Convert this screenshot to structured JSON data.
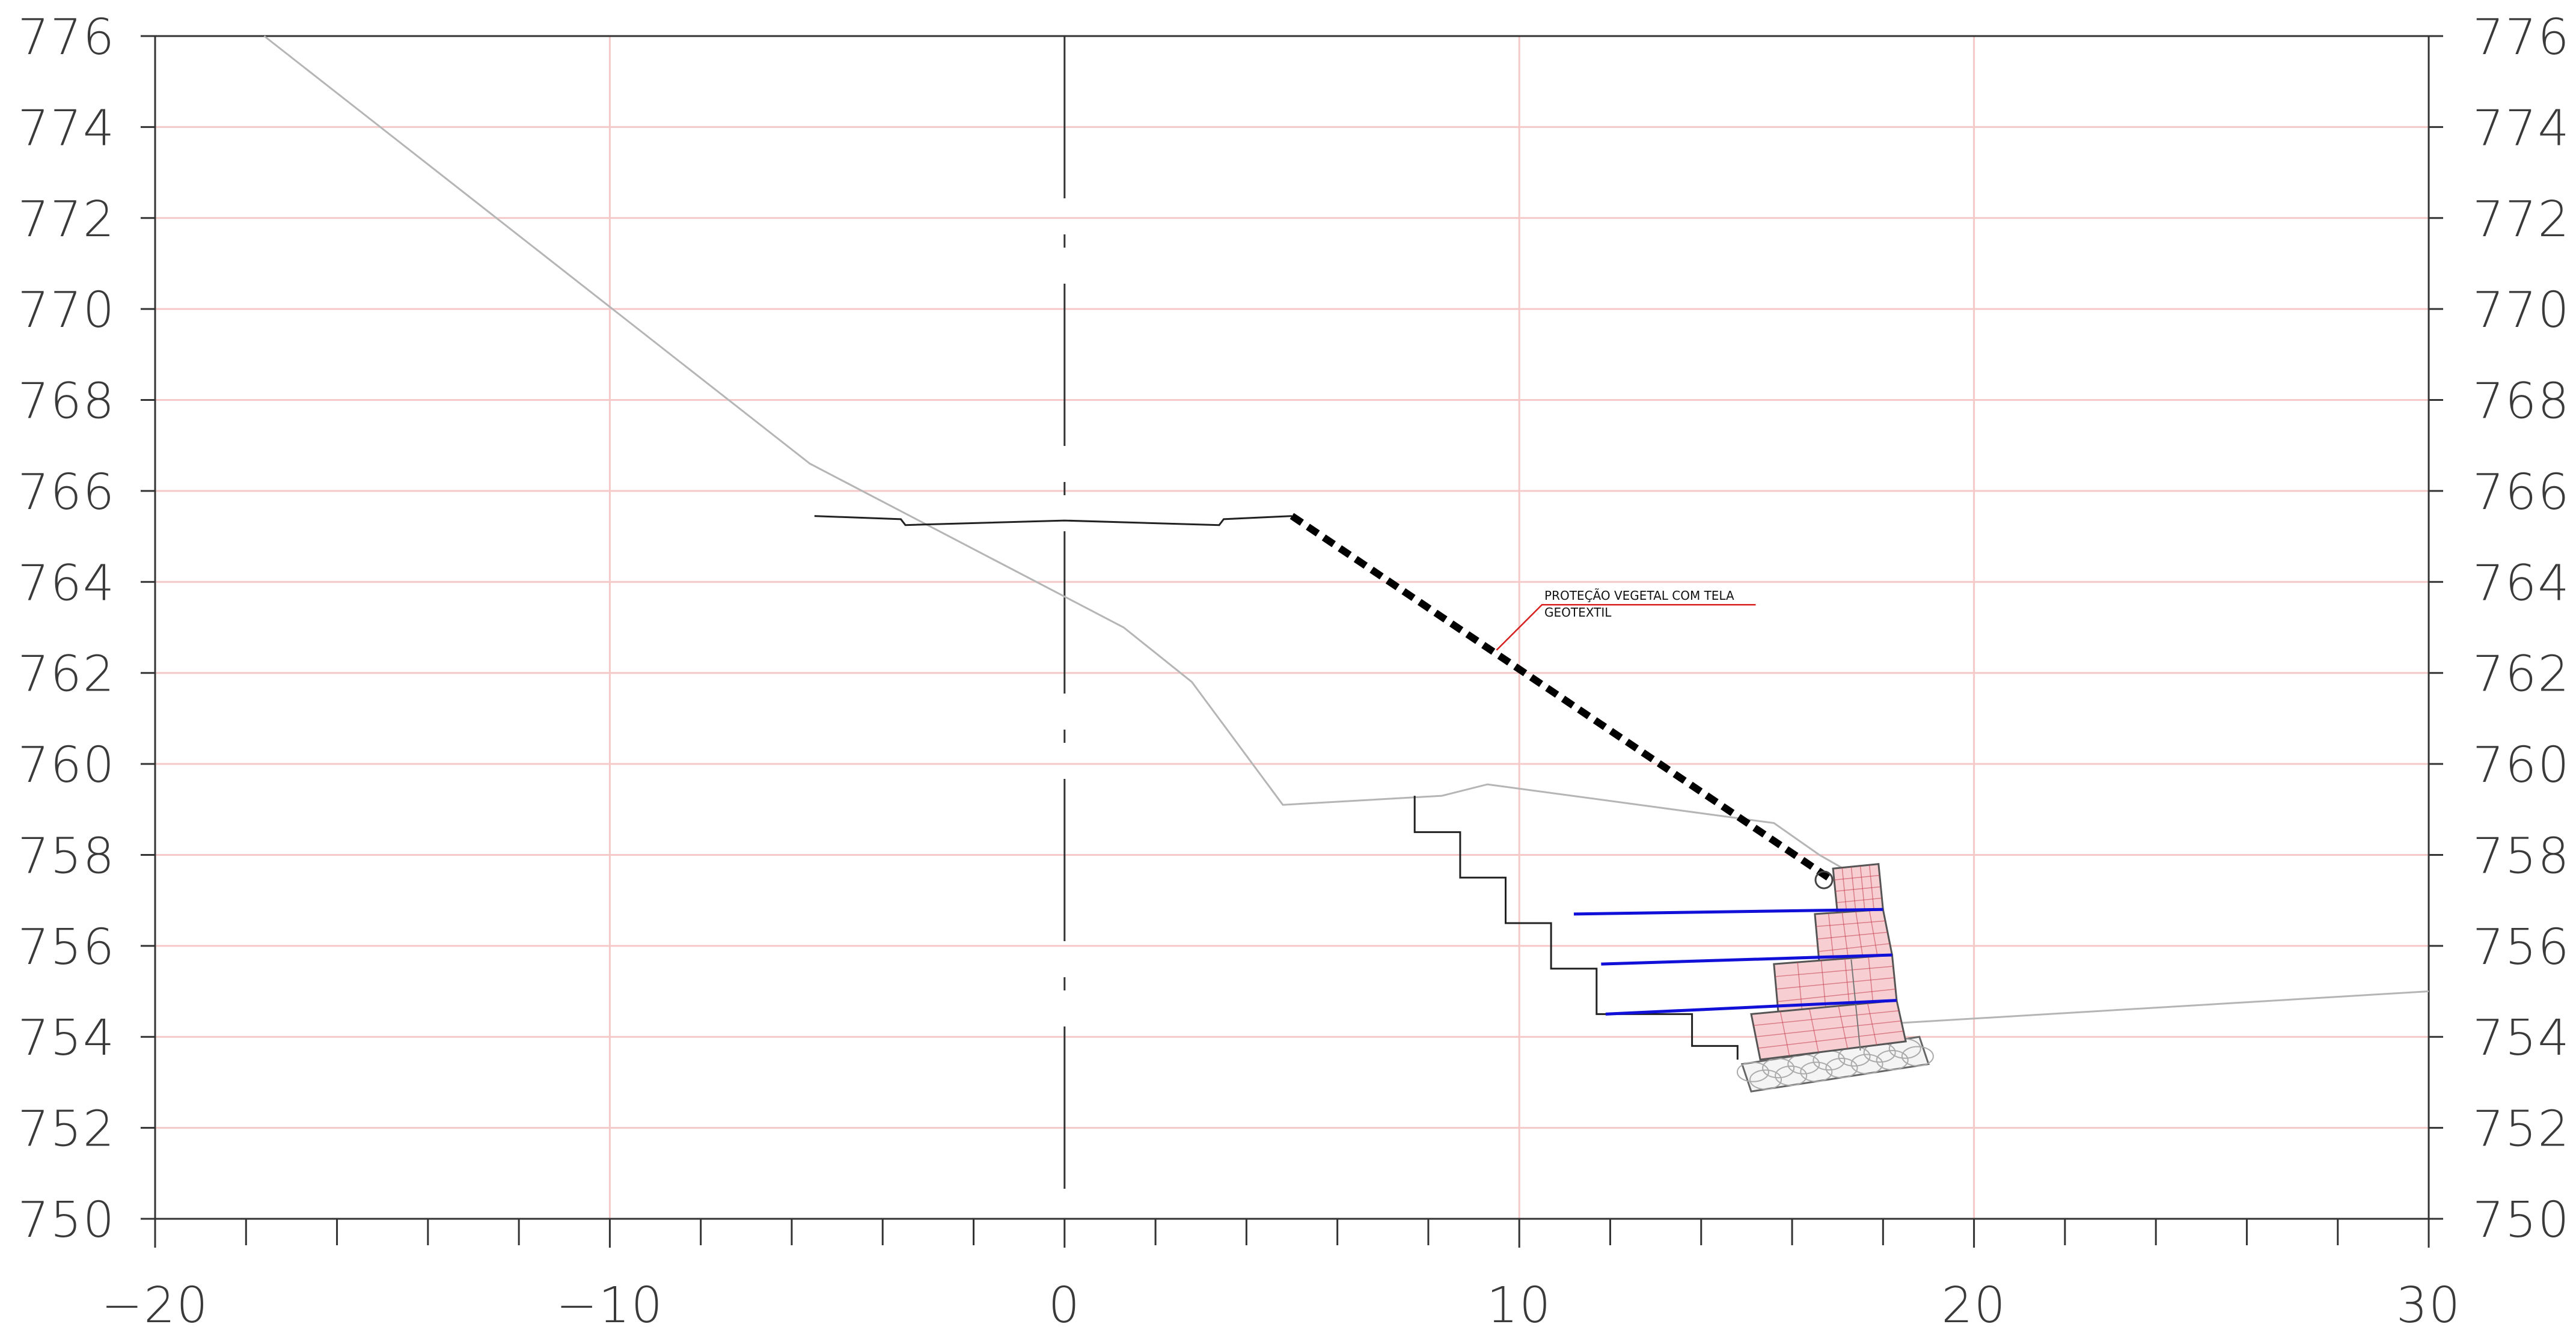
{
  "chart_data": {
    "type": "cross-section",
    "title": "",
    "xlabel": "",
    "ylabel": "",
    "xlim": [
      -20,
      30
    ],
    "ylim": [
      750,
      776
    ],
    "x_ticks": [
      -20,
      -10,
      0,
      10,
      20,
      30
    ],
    "x_tick_labels": [
      "−20",
      "−10",
      "0",
      "10",
      "20",
      "30"
    ],
    "y_ticks": [
      750,
      752,
      754,
      756,
      758,
      760,
      762,
      764,
      766,
      768,
      770,
      772,
      774,
      776
    ],
    "y_tick_labels": [
      "750",
      "752",
      "754",
      "756",
      "758",
      "760",
      "762",
      "764",
      "766",
      "768",
      "770",
      "772",
      "774",
      "776"
    ],
    "grid": "red horizontal every 2 m, vertical every 10 m",
    "centerline_x": 0,
    "existing_terrain": [
      [
        -17.6,
        776
      ],
      [
        -5.6,
        766.6
      ],
      [
        1.3,
        763
      ],
      [
        2.8,
        761.8
      ],
      [
        4.8,
        759.1
      ],
      [
        8.3,
        759.3
      ],
      [
        9.3,
        759.55
      ],
      [
        15.6,
        758.7
      ],
      [
        16.6,
        758
      ],
      [
        17.3,
        757.6
      ],
      [
        18.3,
        754.3
      ],
      [
        30,
        755
      ]
    ],
    "platform_profile": [
      [
        -5.5,
        765.45
      ],
      [
        -3.6,
        765.38
      ],
      [
        -3.5,
        765.25
      ],
      [
        0,
        765.35
      ],
      [
        3.4,
        765.25
      ],
      [
        3.5,
        765.38
      ],
      [
        5,
        765.45
      ]
    ],
    "slope_protection": [
      [
        5,
        765.45
      ],
      [
        16.8,
        757.5
      ]
    ],
    "excavation_steps": [
      [
        7.7,
        759.3
      ],
      [
        7.7,
        758.5
      ],
      [
        8.7,
        758.5
      ],
      [
        8.7,
        757.5
      ],
      [
        9.7,
        757.5
      ],
      [
        9.7,
        756.5
      ],
      [
        10.7,
        756.5
      ],
      [
        10.7,
        755.5
      ],
      [
        11.7,
        755.5
      ],
      [
        11.7,
        754.5
      ],
      [
        13.8,
        754.5
      ],
      [
        13.8,
        753.8
      ],
      [
        14.8,
        753.8
      ],
      [
        14.8,
        753.5
      ]
    ],
    "reinforcement_layers": [
      {
        "from": [
          11.2,
          756.7
        ],
        "to": [
          18,
          756.8
        ]
      },
      {
        "from": [
          11.8,
          755.6
        ],
        "to": [
          18.2,
          755.8
        ]
      },
      {
        "from": [
          11.9,
          754.5
        ],
        "to": [
          18.3,
          754.8
        ]
      }
    ],
    "gabion_blocks": [
      [
        [
          17.0,
          756.7
        ],
        [
          18.0,
          756.8
        ],
        [
          17.9,
          757.8
        ],
        [
          16.9,
          757.7
        ]
      ],
      [
        [
          16.6,
          755.6
        ],
        [
          18.2,
          755.8
        ],
        [
          18.0,
          756.8
        ],
        [
          16.5,
          756.7
        ]
      ],
      [
        [
          15.7,
          754.5
        ],
        [
          18.3,
          754.8
        ],
        [
          18.2,
          755.8
        ],
        [
          15.6,
          755.6
        ]
      ],
      [
        [
          15.3,
          753.5
        ],
        [
          18.5,
          753.9
        ],
        [
          18.3,
          754.8
        ],
        [
          15.1,
          754.5
        ]
      ]
    ],
    "foundation": [
      [
        15.1,
        752.8
      ],
      [
        19.0,
        753.4
      ],
      [
        18.8,
        754.0
      ],
      [
        14.9,
        753.4
      ]
    ],
    "annotation": {
      "line1": "PROTEÇÃO VEGETAL COM TELA",
      "line2": "GEOTEXTIL",
      "anchor": [
        9.5,
        762.5
      ],
      "elbow": [
        10.5,
        763.5
      ],
      "end": [
        15.2,
        763.5
      ]
    },
    "colors": {
      "grid": "#f6c9c9",
      "axis": "#333333",
      "terrain": "#b5b5b5",
      "reinforcement": "#1010d8",
      "gabion_fill": "#f7cfd2",
      "gabion_stroke": "#c43a4a",
      "annotation_leader": "#d82020"
    }
  }
}
